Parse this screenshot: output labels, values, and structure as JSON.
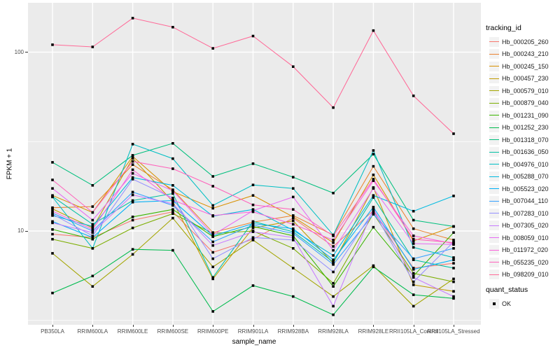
{
  "chart_data": {
    "type": "line",
    "title": "",
    "xlabel": "sample_name",
    "ylabel": "FPKM + 1",
    "y_scale": "log10",
    "y_ticks": [
      {
        "label": "100",
        "value": 100
      },
      {
        "label": "10",
        "value": 10
      }
    ],
    "y_minor_gridline_values": [
      31.62,
      3.162
    ],
    "ylim_log10": [
      0.47,
      2.28
    ],
    "grid": "on",
    "legend_position": "right",
    "categories": [
      "PB350LA",
      "RRIM600LA",
      "RRIM600LE",
      "RRIM600SE",
      "RRIM600PE",
      "RRIM901LA",
      "RRIM928BA",
      "RRIM928LA",
      "RRIM928LE",
      "RRII105LA_Control",
      "RRII105LA_Stressed"
    ],
    "series": [
      {
        "name": "Hb_000205_260",
        "color": "#F8766D",
        "values": [
          9.6,
          9.2,
          11.5,
          12.8,
          7.6,
          9.0,
          11.8,
          8.2,
          13.0,
          6.2,
          6.6
        ]
      },
      {
        "name": "Hb_000243_210",
        "color": "#EA8331",
        "values": [
          13.5,
          13.7,
          23.5,
          17.0,
          9.8,
          11.2,
          12.2,
          9.5,
          23.0,
          10.3,
          8.9
        ]
      },
      {
        "name": "Hb_000245_150",
        "color": "#D89000",
        "values": [
          15.8,
          12.7,
          26.1,
          16.6,
          13.4,
          15.8,
          12.0,
          8.6,
          20.6,
          8.8,
          10.6
        ]
      },
      {
        "name": "Hb_000457_230",
        "color": "#C09B00",
        "values": [
          13.3,
          10.4,
          25.5,
          14.6,
          5.4,
          10.4,
          11.4,
          6.6,
          17.5,
          5.0,
          4.6
        ]
      },
      {
        "name": "Hb_000579_010",
        "color": "#A3A500",
        "values": [
          7.5,
          4.9,
          7.4,
          11.8,
          6.3,
          8.9,
          6.2,
          4.3,
          6.4,
          3.8,
          5.4
        ]
      },
      {
        "name": "Hb_000879_040",
        "color": "#7CAE00",
        "values": [
          9.0,
          8.0,
          10.4,
          12.5,
          9.7,
          10.0,
          8.0,
          5.1,
          12.5,
          5.8,
          5.2
        ]
      },
      {
        "name": "Hb_001231_090",
        "color": "#39B600",
        "values": [
          10.2,
          9.0,
          12.0,
          13.2,
          9.3,
          10.6,
          9.4,
          4.9,
          10.5,
          5.6,
          9.8
        ]
      },
      {
        "name": "Hb_001252_230",
        "color": "#00BB4E",
        "values": [
          4.5,
          5.6,
          7.9,
          7.8,
          3.55,
          4.95,
          4.3,
          3.4,
          6.3,
          4.4,
          4.2
        ]
      },
      {
        "name": "Hb_001318_070",
        "color": "#00BF7D",
        "values": [
          24.2,
          18.0,
          26.5,
          30.9,
          20.2,
          23.8,
          20.0,
          16.3,
          26.9,
          11.5,
          10.6
        ]
      },
      {
        "name": "Hb_001636_050",
        "color": "#00C1A3",
        "values": [
          15.6,
          10.9,
          14.8,
          16.2,
          5.5,
          11.3,
          9.9,
          6.7,
          15.4,
          6.9,
          6.2
        ]
      },
      {
        "name": "Hb_004976_010",
        "color": "#00BFC4",
        "values": [
          15.5,
          8.0,
          30.6,
          25.4,
          13.9,
          18.1,
          17.3,
          9.5,
          28.2,
          8.1,
          7.1
        ]
      },
      {
        "name": "Hb_005288_070",
        "color": "#00BAE0",
        "values": [
          12.2,
          10.6,
          19.9,
          18.0,
          12.1,
          13.2,
          10.1,
          7.3,
          15.8,
          12.9,
          15.7
        ]
      },
      {
        "name": "Hb_005523_020",
        "color": "#00B0F6",
        "values": [
          11.3,
          9.2,
          14.5,
          14.8,
          9.4,
          11.0,
          10.3,
          6.9,
          13.6,
          6.1,
          6.9
        ]
      },
      {
        "name": "Hb_007044_110",
        "color": "#35A2FF",
        "values": [
          12.6,
          10.0,
          16.5,
          13.9,
          8.7,
          10.8,
          9.7,
          6.5,
          12.4,
          7.0,
          8.0
        ]
      },
      {
        "name": "Hb_007283_010",
        "color": "#9590FF",
        "values": [
          12.4,
          9.4,
          19.5,
          15.3,
          7.0,
          9.2,
          8.9,
          5.9,
          12.9,
          5.2,
          8.7
        ]
      },
      {
        "name": "Hb_007305_020",
        "color": "#C77CFF",
        "values": [
          11.1,
          9.8,
          15.9,
          14.2,
          8.3,
          9.9,
          9.2,
          3.8,
          13.3,
          5.5,
          4.3
        ]
      },
      {
        "name": "Hb_008059_010",
        "color": "#E76BF3",
        "values": [
          17.3,
          11.5,
          21.0,
          16.8,
          9.5,
          13.0,
          15.5,
          7.8,
          17.3,
          8.5,
          8.4
        ]
      },
      {
        "name": "Hb_011972_020",
        "color": "#FA62DB",
        "values": [
          12.9,
          10.2,
          22.0,
          14.9,
          12.2,
          12.8,
          10.9,
          8.9,
          19.1,
          9.4,
          8.5
        ]
      },
      {
        "name": "Hb_055235_020",
        "color": "#FF62BC",
        "values": [
          19.3,
          12.7,
          24.5,
          22.3,
          17.8,
          14.0,
          13.2,
          9.4,
          19.5,
          9.0,
          8.6
        ]
      },
      {
        "name": "Hb_098209_010",
        "color": "#FF6A98",
        "values": [
          110,
          107,
          155,
          138,
          105,
          123,
          83,
          49,
          132,
          57,
          35
        ]
      }
    ],
    "point": {
      "shape": "filled-square",
      "color": "#000000",
      "legend_label": "OK"
    },
    "legend": {
      "color_title": "tracking_id",
      "shape_title": "quant_status"
    },
    "panel_background": "#EBEBEB",
    "gridline_color": "#FFFFFF",
    "axis_text_color": "#4D4D4D"
  }
}
